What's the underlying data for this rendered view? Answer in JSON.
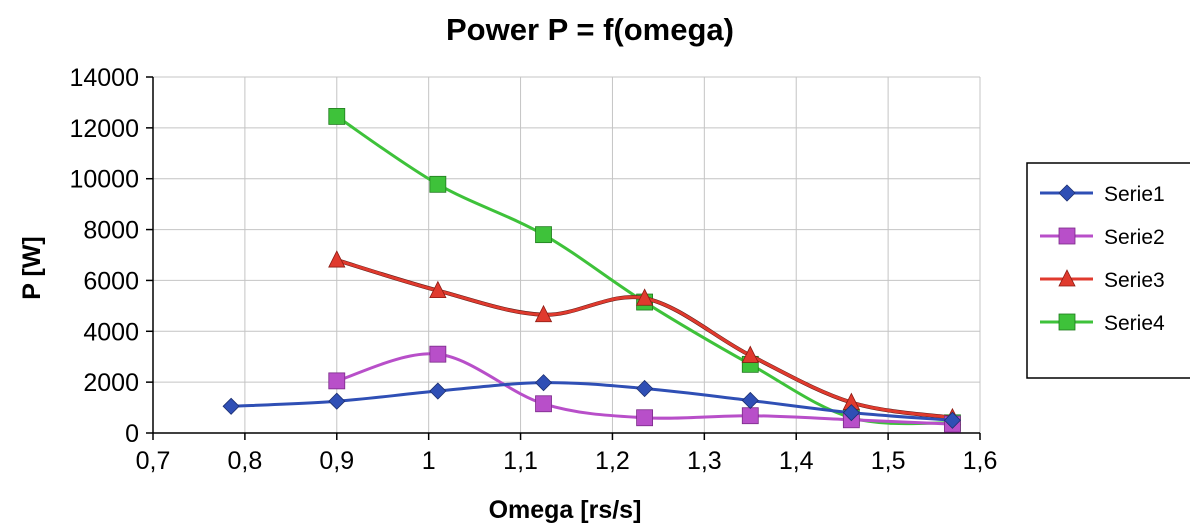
{
  "chart_data": {
    "type": "line",
    "title": "Power  P = f(omega)",
    "xlabel": "Omega [rs/s]",
    "ylabel": "P [W]",
    "xlim": [
      0.7,
      1.6
    ],
    "ylim": [
      0,
      14000
    ],
    "x_ticks": [
      "0,7",
      "0,8",
      "0,9",
      "1",
      "1,1",
      "1,2",
      "1,3",
      "1,4",
      "1,5",
      "1,6"
    ],
    "y_ticks": [
      "0",
      "2000",
      "4000",
      "6000",
      "8000",
      "10000",
      "12000",
      "14000"
    ],
    "grid": true,
    "legend_position": "right",
    "series": [
      {
        "name": "Serie1",
        "color": "#2f4fb5",
        "marker": "diamond",
        "points": [
          [
            0.785,
            1050
          ],
          [
            0.9,
            1250
          ],
          [
            1.01,
            1650
          ],
          [
            1.125,
            1980
          ],
          [
            1.235,
            1750
          ],
          [
            1.35,
            1280
          ],
          [
            1.46,
            800
          ],
          [
            1.57,
            500
          ]
        ]
      },
      {
        "name": "Serie2",
        "color": "#b84fc9",
        "marker": "square",
        "points": [
          [
            0.9,
            2050
          ],
          [
            1.01,
            3100
          ],
          [
            1.125,
            1150
          ],
          [
            1.235,
            600
          ],
          [
            1.35,
            680
          ],
          [
            1.46,
            520
          ],
          [
            1.57,
            350
          ]
        ]
      },
      {
        "name": "Serie3",
        "color": "#e03a2e",
        "marker": "triangle",
        "points": [
          [
            0.9,
            6800
          ],
          [
            1.01,
            5600
          ],
          [
            1.125,
            4650
          ],
          [
            1.235,
            5300
          ],
          [
            1.35,
            3050
          ],
          [
            1.46,
            1200
          ],
          [
            1.57,
            600
          ]
        ]
      },
      {
        "name": "Serie4",
        "color": "#3ec23a",
        "marker": "square",
        "points": [
          [
            0.9,
            12450
          ],
          [
            1.01,
            9780
          ],
          [
            1.125,
            7800
          ],
          [
            1.235,
            5150
          ],
          [
            1.35,
            2700
          ],
          [
            1.46,
            600
          ],
          [
            1.57,
            400
          ]
        ]
      }
    ]
  }
}
